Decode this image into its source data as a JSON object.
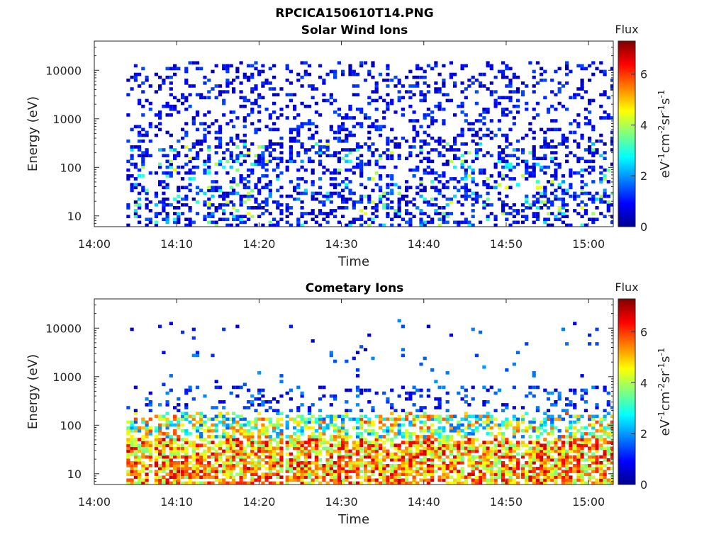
{
  "figure": {
    "title": "RPCICA150610T14.PNG"
  },
  "chart_data": [
    {
      "type": "heatmap",
      "title": "Solar Wind Ions",
      "xlabel": "Time",
      "ylabel": "Energy (eV)",
      "x_ticks": [
        "14:00",
        "14:10",
        "14:20",
        "14:30",
        "14:40",
        "14:50",
        "15:00"
      ],
      "y_ticks": [
        "10",
        "100",
        "1000",
        "10000"
      ],
      "y_scale": "log",
      "x_range": [
        "14:00",
        "15:03"
      ],
      "y_range": [
        6,
        40000
      ],
      "colorbar": {
        "title": "Flux",
        "label": "eV-1cm-2sr-1s-1",
        "range": [
          0,
          7.3
        ],
        "ticks": [
          "0",
          "2",
          "4",
          "6"
        ],
        "colormap": "jet"
      },
      "sweep_start_minutes": [
        3.9,
        7.3,
        10.5,
        13.7,
        16.7,
        19.8,
        23.2,
        26.3,
        29.5,
        32.7,
        35.9,
        39.0,
        42.2,
        45.3,
        48.5,
        51.8,
        54.9,
        58.1,
        61.3
      ],
      "population": "solar-wind",
      "peak_flux_level": 4.5,
      "typical_flux_level": 1.0
    },
    {
      "type": "heatmap",
      "title": "Cometary Ions",
      "xlabel": "Time",
      "ylabel": "Energy (eV)",
      "x_ticks": [
        "14:00",
        "14:10",
        "14:20",
        "14:30",
        "14:40",
        "14:50",
        "15:00"
      ],
      "y_ticks": [
        "10",
        "100",
        "1000",
        "10000"
      ],
      "y_scale": "log",
      "x_range": [
        "14:00",
        "15:03"
      ],
      "y_range": [
        6,
        40000
      ],
      "colorbar": {
        "title": "Flux",
        "label": "eV-1cm-2sr-1s-1",
        "range": [
          0,
          7.3
        ],
        "ticks": [
          "0",
          "2",
          "4",
          "6"
        ],
        "colormap": "jet"
      },
      "sweep_start_minutes": [
        3.9,
        7.3,
        10.5,
        13.7,
        16.7,
        19.8,
        23.2,
        26.3,
        29.5,
        32.7,
        35.9,
        39.0,
        42.2,
        45.3,
        48.5,
        51.8,
        54.9,
        58.1,
        61.3
      ],
      "population": "cometary",
      "peak_flux_level": 6.8,
      "typical_flux_level": 3.5
    }
  ]
}
